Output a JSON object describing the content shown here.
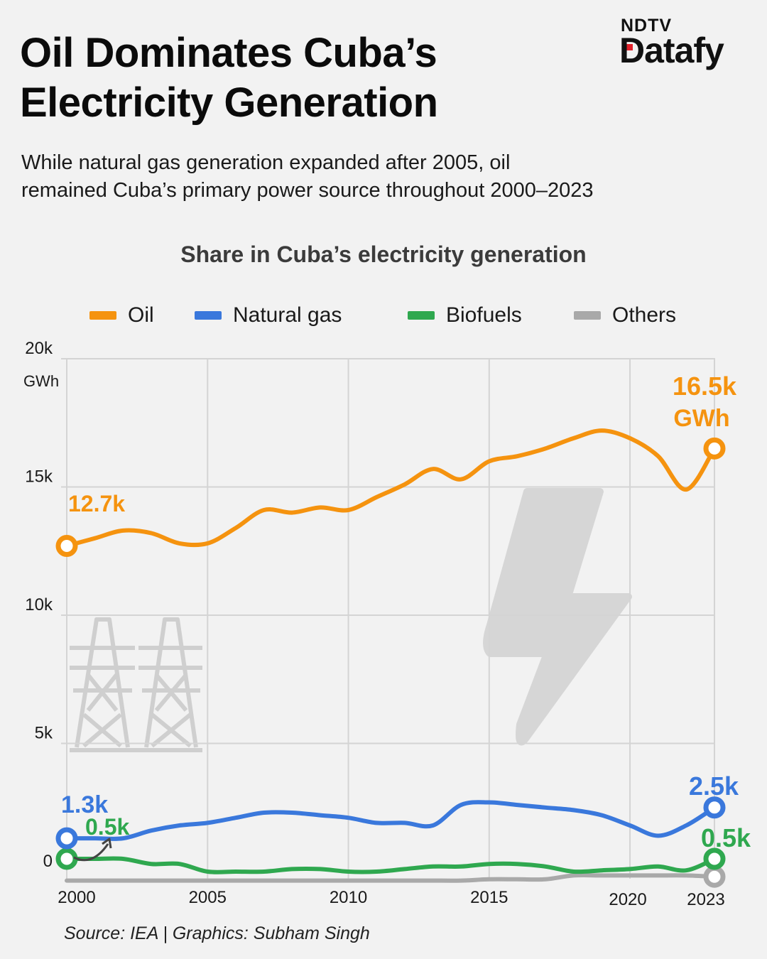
{
  "header": {
    "title_line1": "Oil Dominates Cuba’s",
    "title_line2": "Electricity Generation",
    "logo_top": "NDTV",
    "logo_bottom": "Datafy",
    "subtitle_line1": "While natural gas generation expanded after 2005, oil",
    "subtitle_line2": "remained Cuba’s primary power source throughout 2000–2023"
  },
  "source": "Source: IEA | Graphics: Subham Singh",
  "chart_data": {
    "type": "line",
    "title": "Share in Cuba’s electricity generation",
    "ylabel": "GWh",
    "xlim": [
      2000,
      2023
    ],
    "ylim": [
      0,
      20000
    ],
    "y_ticks": [
      {
        "value": 0,
        "label": "0"
      },
      {
        "value": 5000,
        "label": "5k"
      },
      {
        "value": 10000,
        "label": "10k"
      },
      {
        "value": 15000,
        "label": "15k"
      },
      {
        "value": 20000,
        "label": "20k"
      }
    ],
    "y_unit_label": "GWh",
    "x_ticks": [
      {
        "value": 2000,
        "label": "2000"
      },
      {
        "value": 2005,
        "label": "2005"
      },
      {
        "value": 2010,
        "label": "2010"
      },
      {
        "value": 2015,
        "label": "2015"
      },
      {
        "value": 2020,
        "label": "2020"
      },
      {
        "value": 2023,
        "label": "2023"
      }
    ],
    "x": [
      2000,
      2001,
      2002,
      2003,
      2004,
      2005,
      2006,
      2007,
      2008,
      2009,
      2010,
      2011,
      2012,
      2013,
      2014,
      2015,
      2016,
      2017,
      2018,
      2019,
      2020,
      2021,
      2022,
      2023
    ],
    "series": [
      {
        "key": "oil",
        "name": "Oil",
        "color": "#f5930f",
        "values": [
          12700,
          13000,
          13300,
          13200,
          12800,
          12800,
          13400,
          14100,
          14000,
          14200,
          14100,
          14600,
          15100,
          15700,
          15300,
          16000,
          16200,
          16500,
          16900,
          17200,
          16900,
          16200,
          14900,
          16500
        ],
        "start_label": "12.7k",
        "end_label": "16.5k",
        "end_unit": "GWh"
      },
      {
        "key": "gas",
        "name": "Natural gas",
        "color": "#3a78dc",
        "values": [
          1300,
          1300,
          1300,
          1600,
          1800,
          1900,
          2100,
          2300,
          2300,
          2200,
          2100,
          1900,
          1900,
          1800,
          2600,
          2700,
          2600,
          2500,
          2400,
          2200,
          1800,
          1400,
          1800,
          2500
        ],
        "start_label": "1.3k",
        "end_label": "2.5k"
      },
      {
        "key": "bio",
        "name": "Biofuels",
        "color": "#2fa84f",
        "values": [
          500,
          500,
          500,
          300,
          300,
          0,
          0,
          0,
          100,
          100,
          0,
          0,
          100,
          200,
          200,
          300,
          300,
          200,
          0,
          50,
          100,
          200,
          50,
          500
        ],
        "start_label": "0.5k",
        "end_label": "0.5k"
      },
      {
        "key": "others",
        "name": "Others",
        "color": "#a9a9a9",
        "values": [
          -350,
          -350,
          -350,
          -350,
          -350,
          -350,
          -350,
          -350,
          -350,
          -350,
          -350,
          -350,
          -350,
          -350,
          -350,
          -300,
          -300,
          -300,
          -150,
          -150,
          -150,
          -150,
          -150,
          -200
        ]
      }
    ]
  }
}
